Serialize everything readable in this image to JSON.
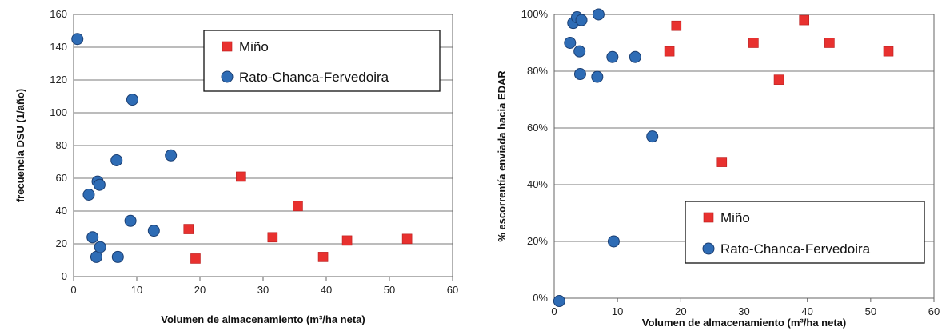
{
  "chart_data": [
    {
      "type": "scatter",
      "xlabel": "Volumen de almacenamiento (m³/ha neta)",
      "ylabel": "frecuencia DSU (1/año)",
      "xlim": [
        0,
        60
      ],
      "ylim": [
        0,
        160
      ],
      "xticks": [
        "0",
        "10",
        "20",
        "30",
        "40",
        "50",
        "60"
      ],
      "yticks": [
        "0",
        "20",
        "40",
        "60",
        "80",
        "100",
        "120",
        "140",
        "160"
      ],
      "grid": "horizontal",
      "legend_position": "top-right",
      "series": [
        {
          "name": "Miño",
          "marker": "square",
          "color": "#e8312f",
          "points": [
            [
              18.2,
              29
            ],
            [
              19.3,
              11
            ],
            [
              26.5,
              61
            ],
            [
              31.5,
              24
            ],
            [
              35.5,
              43
            ],
            [
              39.5,
              12
            ],
            [
              43.3,
              22
            ],
            [
              52.8,
              23
            ]
          ]
        },
        {
          "name": "Rato-Chanca-Fervedoira",
          "marker": "circle",
          "color": "#2e6cb5",
          "points": [
            [
              0.6,
              145
            ],
            [
              2.4,
              50
            ],
            [
              3.0,
              24
            ],
            [
              3.6,
              12
            ],
            [
              3.8,
              58
            ],
            [
              4.1,
              56
            ],
            [
              4.2,
              18
            ],
            [
              6.8,
              71
            ],
            [
              7.0,
              12
            ],
            [
              9.0,
              34
            ],
            [
              9.3,
              108
            ],
            [
              12.7,
              28
            ],
            [
              15.4,
              74
            ]
          ]
        }
      ]
    },
    {
      "type": "scatter",
      "xlabel": "Volumen de almacenamiento (m³/ha neta)",
      "ylabel": "% escorrentía enviada hacia EDAR",
      "xlim": [
        0,
        60
      ],
      "ylim": [
        0,
        100
      ],
      "xticks": [
        "0",
        "10",
        "20",
        "30",
        "40",
        "50",
        "60"
      ],
      "yticks": [
        "0%",
        "20%",
        "40%",
        "60%",
        "80%",
        "100%"
      ],
      "grid": "horizontal",
      "legend_position": "bottom-right",
      "series": [
        {
          "name": "Miño",
          "marker": "square",
          "color": "#e8312f",
          "points": [
            [
              18.2,
              87
            ],
            [
              19.3,
              96
            ],
            [
              26.5,
              48
            ],
            [
              31.5,
              90
            ],
            [
              35.5,
              77
            ],
            [
              39.5,
              98
            ],
            [
              43.5,
              90
            ],
            [
              52.8,
              87
            ]
          ]
        },
        {
          "name": "Rato-Chanca-Fervedoira",
          "marker": "circle",
          "color": "#2e6cb5",
          "points": [
            [
              0.8,
              -1
            ],
            [
              2.5,
              90
            ],
            [
              3.0,
              97
            ],
            [
              3.6,
              99
            ],
            [
              4.0,
              87
            ],
            [
              4.1,
              79
            ],
            [
              4.3,
              98
            ],
            [
              6.8,
              78
            ],
            [
              7.0,
              100
            ],
            [
              9.2,
              85
            ],
            [
              9.4,
              20
            ],
            [
              12.8,
              85
            ],
            [
              15.5,
              57
            ]
          ]
        }
      ]
    }
  ]
}
